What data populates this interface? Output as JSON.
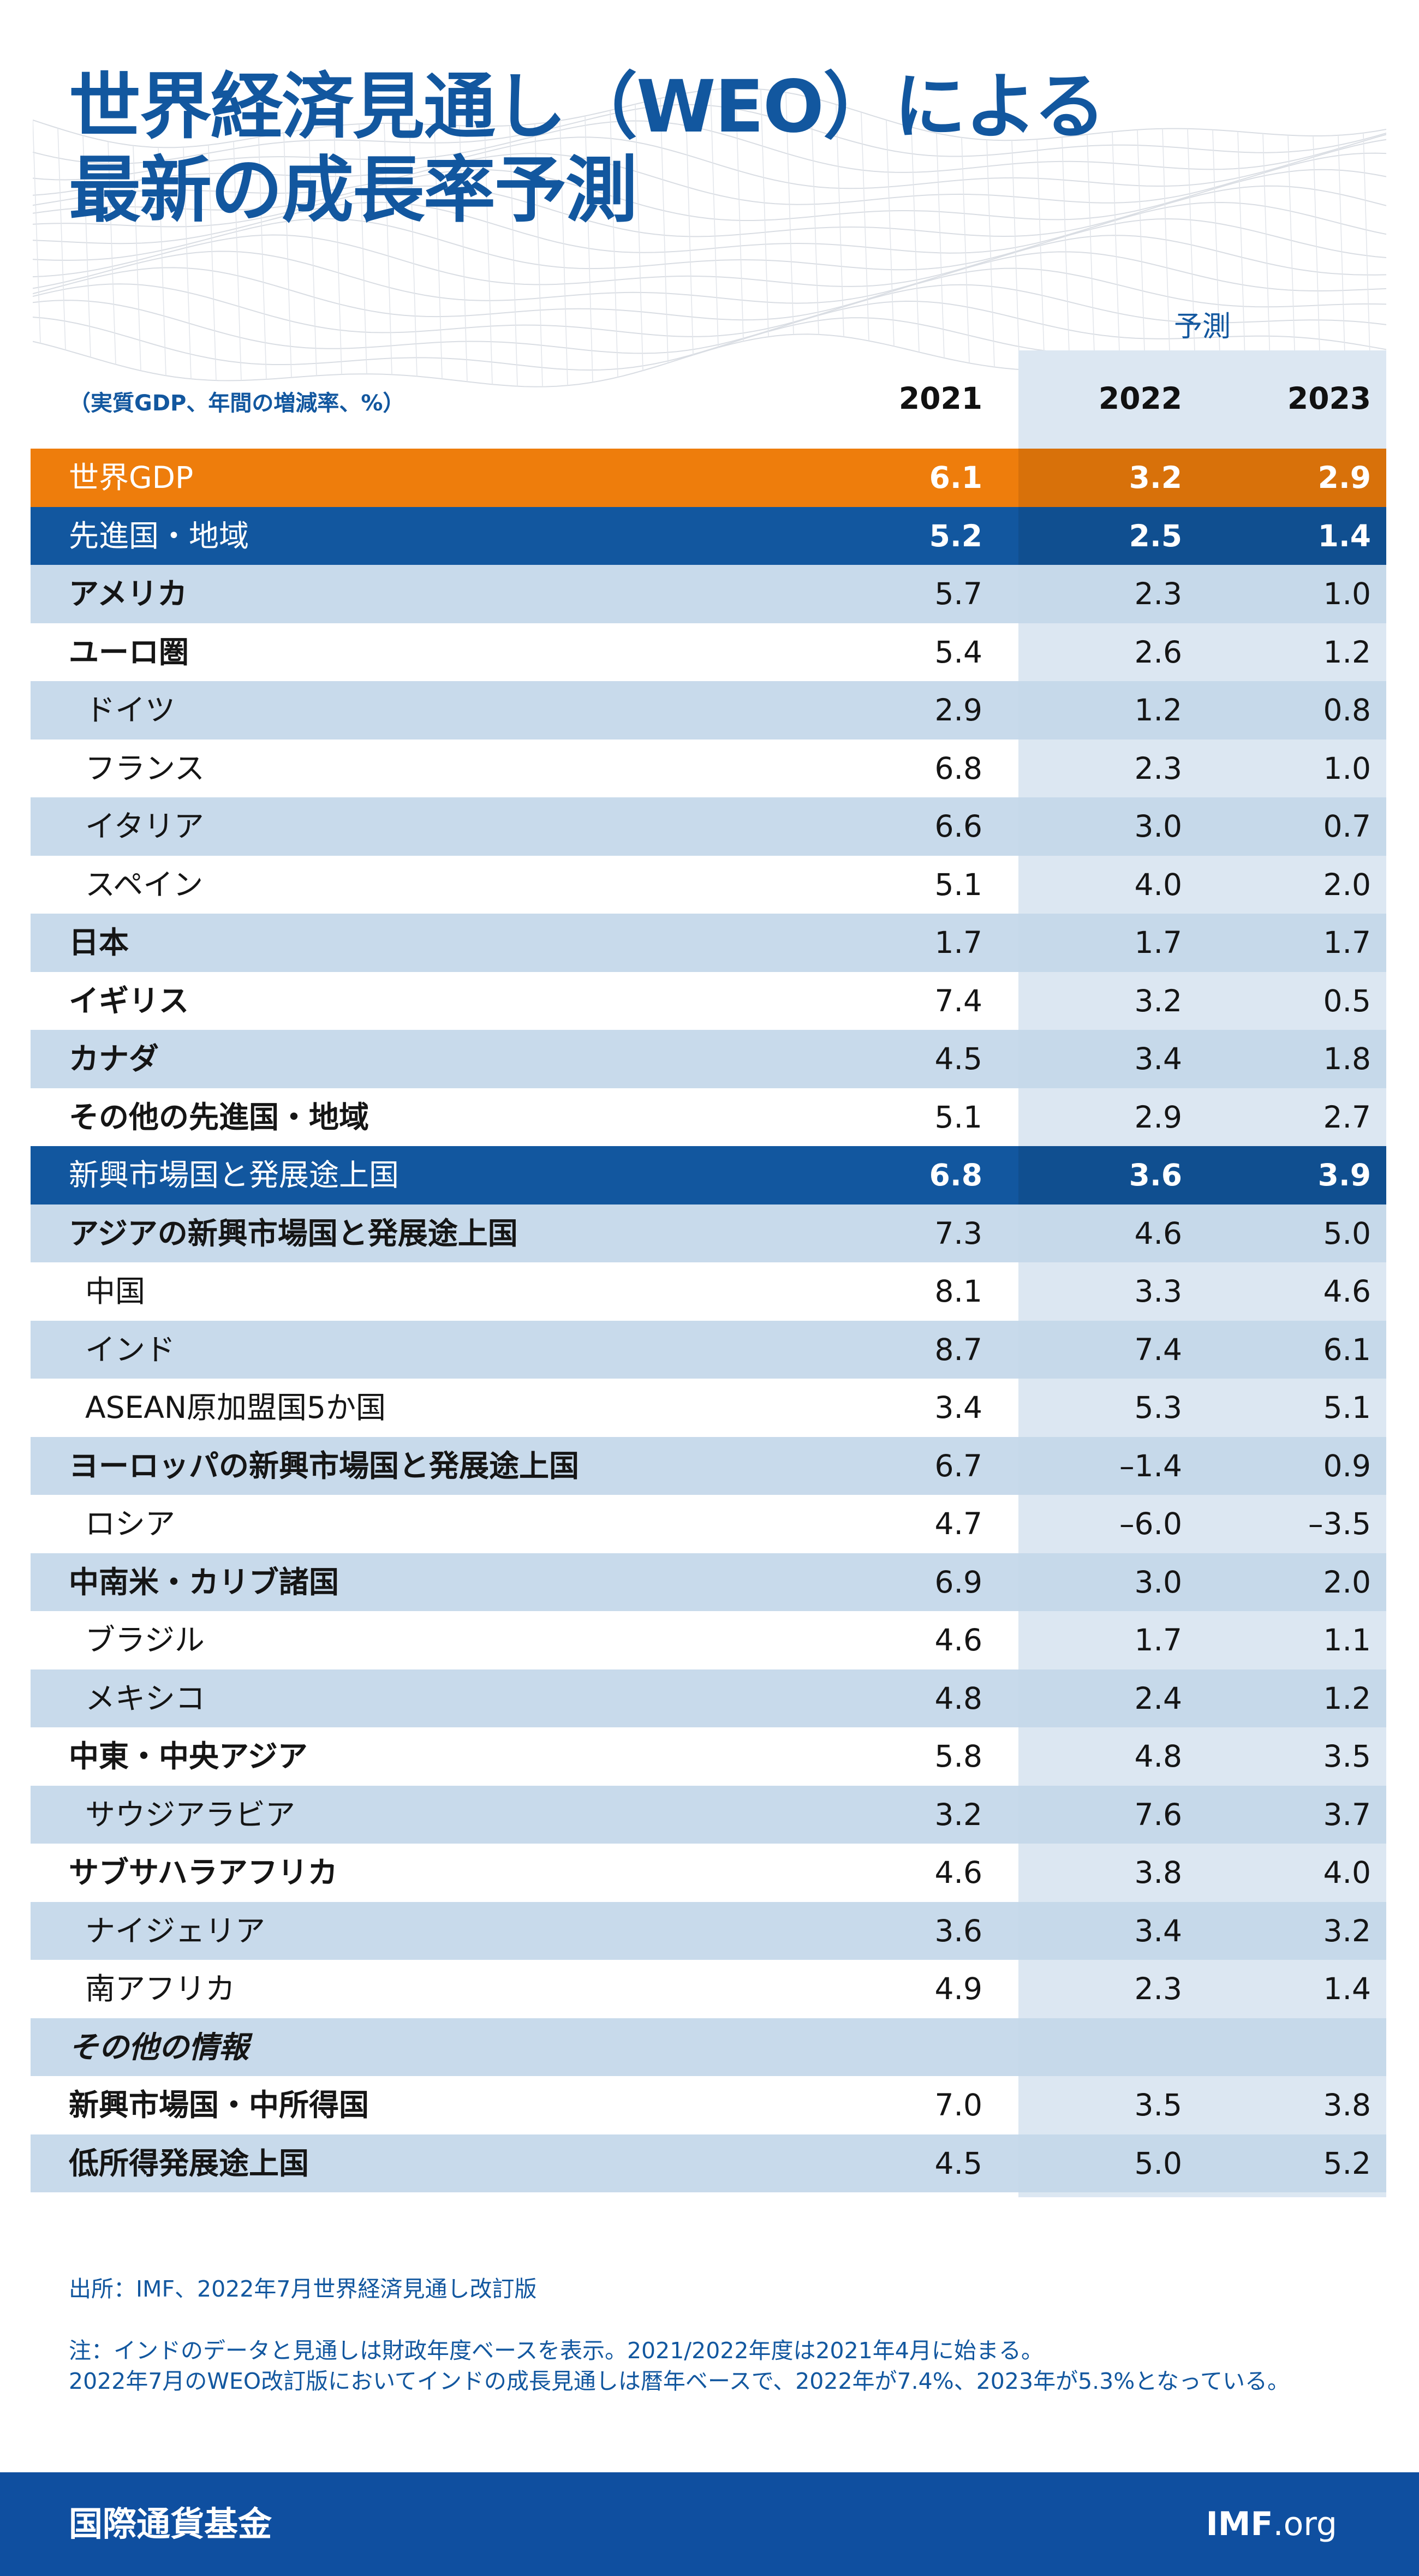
{
  "title": {
    "line1": "世界経済見通し（WEO）による",
    "line2": "最新の成長率予測"
  },
  "header": {
    "units": "（実質GDP、年間の増減率、%）",
    "forecast_label": "予測",
    "years": [
      "2021",
      "2022",
      "2023"
    ]
  },
  "colors": {
    "title_blue": "#12579f",
    "world_orange": "#ee7d0c",
    "group_blue": "#12579f",
    "stripe": "#c4d7ea",
    "forecast_band": "#dce7f2",
    "footer_blue": "#0f4fa0"
  },
  "chart_data": {
    "type": "table",
    "columns": [
      "2021",
      "2022",
      "2023"
    ],
    "rows": [
      {
        "label": "世界GDP",
        "values": [
          "6.1",
          "3.2",
          "2.9"
        ],
        "style": "world"
      },
      {
        "label": "先進国・地域",
        "values": [
          "5.2",
          "2.5",
          "1.4"
        ],
        "style": "group"
      },
      {
        "label": "アメリカ",
        "values": [
          "5.7",
          "2.3",
          "1.0"
        ],
        "style": "bold"
      },
      {
        "label": "ユーロ圏",
        "values": [
          "5.4",
          "2.6",
          "1.2"
        ],
        "style": "bold"
      },
      {
        "label": "ドイツ",
        "values": [
          "2.9",
          "1.2",
          "0.8"
        ],
        "style": "indent"
      },
      {
        "label": "フランス",
        "values": [
          "6.8",
          "2.3",
          "1.0"
        ],
        "style": "indent"
      },
      {
        "label": "イタリア",
        "values": [
          "6.6",
          "3.0",
          "0.7"
        ],
        "style": "indent"
      },
      {
        "label": "スペイン",
        "values": [
          "5.1",
          "4.0",
          "2.0"
        ],
        "style": "indent"
      },
      {
        "label": "日本",
        "values": [
          "1.7",
          "1.7",
          "1.7"
        ],
        "style": "bold"
      },
      {
        "label": "イギリス",
        "values": [
          "7.4",
          "3.2",
          "0.5"
        ],
        "style": "bold"
      },
      {
        "label": "カナダ",
        "values": [
          "4.5",
          "3.4",
          "1.8"
        ],
        "style": "bold"
      },
      {
        "label": "その他の先進国・地域",
        "values": [
          "5.1",
          "2.9",
          "2.7"
        ],
        "style": "bold"
      },
      {
        "label": "新興市場国と発展途上国",
        "values": [
          "6.8",
          "3.6",
          "3.9"
        ],
        "style": "group"
      },
      {
        "label": "アジアの新興市場国と発展途上国",
        "values": [
          "7.3",
          "4.6",
          "5.0"
        ],
        "style": "bold"
      },
      {
        "label": "中国",
        "values": [
          "8.1",
          "3.3",
          "4.6"
        ],
        "style": "indent"
      },
      {
        "label": "インド",
        "values": [
          "8.7",
          "7.4",
          "6.1"
        ],
        "style": "indent"
      },
      {
        "label": "ASEAN原加盟国5か国",
        "values": [
          "3.4",
          "5.3",
          "5.1"
        ],
        "style": "indent"
      },
      {
        "label": "ヨーロッパの新興市場国と発展途上国",
        "values": [
          "6.7",
          "–1.4",
          "0.9"
        ],
        "style": "bold"
      },
      {
        "label": "ロシア",
        "values": [
          "4.7",
          "–6.0",
          "–3.5"
        ],
        "style": "indent"
      },
      {
        "label": "中南米・カリブ諸国",
        "values": [
          "6.9",
          "3.0",
          "2.0"
        ],
        "style": "bold"
      },
      {
        "label": "ブラジル",
        "values": [
          "4.6",
          "1.7",
          "1.1"
        ],
        "style": "indent"
      },
      {
        "label": "メキシコ",
        "values": [
          "4.8",
          "2.4",
          "1.2"
        ],
        "style": "indent"
      },
      {
        "label": "中東・中央アジア",
        "values": [
          "5.8",
          "4.8",
          "3.5"
        ],
        "style": "bold"
      },
      {
        "label": "サウジアラビア",
        "values": [
          "3.2",
          "7.6",
          "3.7"
        ],
        "style": "indent"
      },
      {
        "label": "サブサハラアフリカ",
        "values": [
          "4.6",
          "3.8",
          "4.0"
        ],
        "style": "bold"
      },
      {
        "label": "ナイジェリア",
        "values": [
          "3.6",
          "3.4",
          "3.2"
        ],
        "style": "indent"
      },
      {
        "label": "南アフリカ",
        "values": [
          "4.9",
          "2.3",
          "1.4"
        ],
        "style": "indent"
      },
      {
        "label": "その他の情報",
        "values": [
          "",
          "",
          ""
        ],
        "style": "italic"
      },
      {
        "label": "新興市場国・中所得国",
        "values": [
          "7.0",
          "3.5",
          "3.8"
        ],
        "style": "bold"
      },
      {
        "label": "低所得発展途上国",
        "values": [
          "4.5",
          "5.0",
          "5.2"
        ],
        "style": "bold"
      }
    ]
  },
  "notes": {
    "source": "出所：IMF、2022年7月世界経済見通し改訂版",
    "note_line1": "注：インドのデータと見通しは財政年度ベースを表示。2021/2022年度は2021年4月に始まる。",
    "note_line2": "2022年7月のWEO改訂版においてインドの成長見通しは暦年ベースで、2022年が7.4%、2023年が5.3%となっている。"
  },
  "footer": {
    "org": "国際通貨基金",
    "site_bold": "IMF",
    "site_rest": ".org"
  }
}
